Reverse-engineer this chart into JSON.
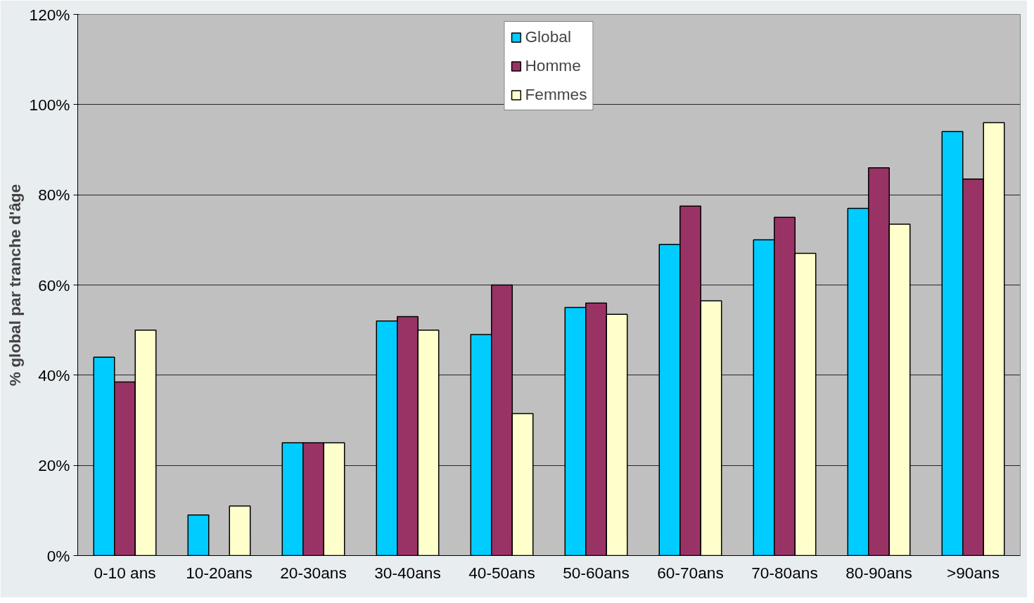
{
  "chart_data": {
    "type": "bar",
    "ylabel": "% global par tranche d'âge",
    "categories": [
      "0-10 ans",
      "10-20ans",
      "20-30ans",
      "30-40ans",
      "40-50ans",
      "50-60ans",
      "60-70ans",
      "70-80ans",
      "80-90ans",
      ">90ans"
    ],
    "series": [
      {
        "name": "Global",
        "color": "#00ccff",
        "values": [
          44,
          9,
          25,
          52,
          49,
          55,
          69,
          70,
          77,
          94
        ]
      },
      {
        "name": "Homme",
        "color": "#993366",
        "values": [
          38.5,
          null,
          25,
          53,
          60,
          56,
          77.5,
          75,
          86,
          83.5
        ]
      },
      {
        "name": "Femmes",
        "color": "#ffffcc",
        "values": [
          50,
          11,
          25,
          50,
          31.5,
          53.5,
          56.5,
          67,
          73.5,
          96
        ]
      }
    ],
    "ylim": [
      0,
      120
    ],
    "yticks": [
      {
        "value": 0,
        "label": "0%"
      },
      {
        "value": 20,
        "label": "20%"
      },
      {
        "value": 40,
        "label": "40%"
      },
      {
        "value": 60,
        "label": "60%"
      },
      {
        "value": 80,
        "label": "80%"
      },
      {
        "value": 100,
        "label": "100%"
      },
      {
        "value": 120,
        "label": "120%"
      }
    ],
    "grid": "y",
    "legend": "top"
  }
}
